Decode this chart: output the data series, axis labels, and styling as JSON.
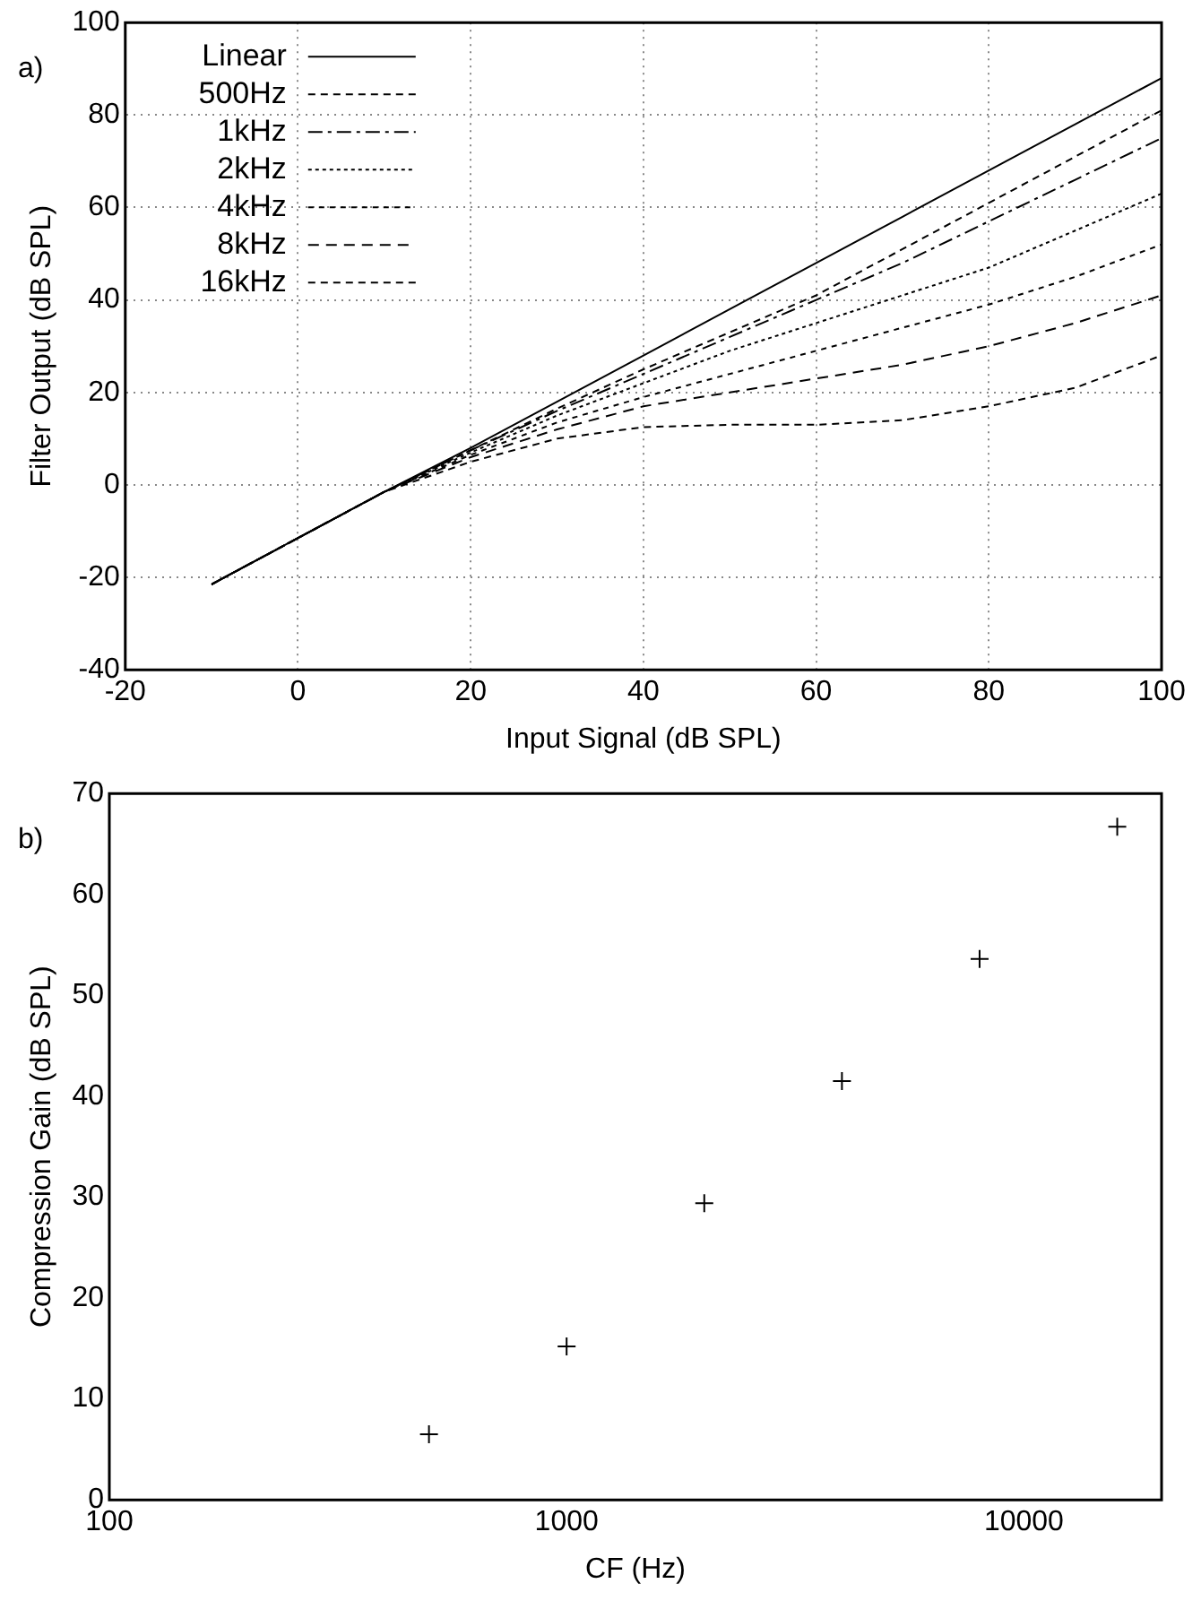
{
  "chart_data": [
    {
      "type": "line",
      "xlabel": "Input Signal (dB SPL)",
      "ylabel": "Filter Output (dB SPL)",
      "annotations": [
        "a)"
      ],
      "x": [
        -10,
        0,
        10,
        20,
        30,
        40,
        50,
        60,
        70,
        80,
        90,
        100
      ],
      "xlim": [
        -20,
        100
      ],
      "xticks": [
        -20,
        0,
        20,
        40,
        60,
        80,
        100
      ],
      "ylim": [
        -40,
        100
      ],
      "yticks": [
        -40,
        -20,
        0,
        20,
        40,
        60,
        80,
        100
      ],
      "grid": true,
      "legend": "top left",
      "marker": "none",
      "series": [
        {
          "name": "Linear",
          "color": "#000000",
          "line_style": "solid",
          "values": [
            -21.5,
            -11.5,
            -1.5,
            8,
            18,
            28,
            38,
            48,
            58,
            68,
            78,
            88
          ]
        },
        {
          "name": "500Hz",
          "color": "#000000",
          "line_style": "dashed",
          "values": [
            -21.5,
            -11.5,
            -1.5,
            7.5,
            16.5,
            25,
            33,
            41,
            51,
            61,
            71,
            81
          ]
        },
        {
          "name": "1kHz",
          "color": "#000000",
          "line_style": "dashed",
          "values": [
            -21.5,
            -11.5,
            -1.5,
            7.5,
            16,
            24,
            32,
            40,
            48,
            57,
            66,
            75
          ]
        },
        {
          "name": "2kHz",
          "color": "#000000",
          "line_style": "dotted",
          "values": [
            -21.5,
            -11.5,
            -1.5,
            7,
            15,
            22,
            29,
            35,
            41,
            47,
            55,
            63
          ]
        },
        {
          "name": "4kHz",
          "color": "#000000",
          "line_style": "dashed",
          "values": [
            -21.5,
            -11.5,
            -1.5,
            6.5,
            13.5,
            19,
            24,
            29,
            34,
            39,
            45,
            52
          ]
        },
        {
          "name": "8kHz",
          "color": "#000000",
          "line_style": "dashed",
          "values": [
            -21.5,
            -11.5,
            -1.5,
            6,
            12,
            17,
            20,
            23,
            26,
            30,
            35,
            41
          ]
        },
        {
          "name": "16kHz",
          "color": "#000000",
          "line_style": "dashed",
          "values": [
            -21.5,
            -11.5,
            -1.5,
            5,
            10,
            12.5,
            13,
            13,
            14,
            17,
            21,
            28
          ]
        }
      ]
    },
    {
      "type": "scatter",
      "xlabel": "CF (Hz)",
      "ylabel": "Compression Gain (dB SPL)",
      "annotations": [
        "b)"
      ],
      "log": "x",
      "x": [
        500,
        1000,
        2000,
        4000,
        8000,
        16000
      ],
      "values": [
        6.5,
        15.2,
        29.4,
        41.5,
        53.6,
        66.7
      ],
      "color": "#000000",
      "marker": "cross",
      "xlim": [
        100,
        20000
      ],
      "xticks": [
        100,
        1000,
        10000
      ],
      "ylim": [
        0,
        70
      ],
      "yticks": [
        0,
        10,
        20,
        30,
        40,
        50,
        60,
        70
      ],
      "grid": false,
      "legend": false
    }
  ]
}
